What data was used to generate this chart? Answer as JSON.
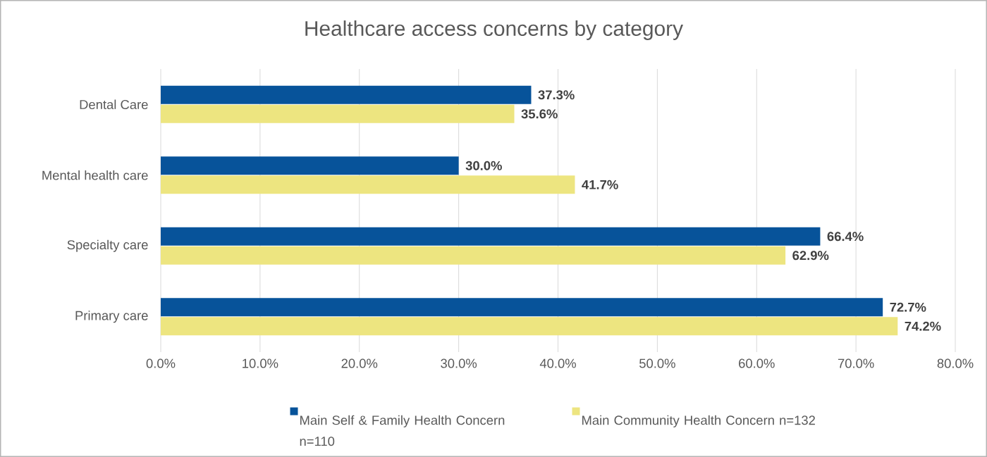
{
  "chart_data": {
    "type": "bar",
    "orientation": "horizontal",
    "title": "Healthcare access concerns by category",
    "categories": [
      "Dental Care",
      "Mental health care",
      "Specialty care",
      "Primary care"
    ],
    "series": [
      {
        "name": "Main Self & Family Health Concern n=110",
        "color": "#07539a",
        "values": [
          37.3,
          30.0,
          66.4,
          72.7
        ],
        "value_labels": [
          "37.3%",
          "30.0%",
          "66.4%",
          "72.7%"
        ]
      },
      {
        "name": "Main Community Health Concern n=132",
        "color": "#ede580",
        "values": [
          35.6,
          41.7,
          62.9,
          74.2
        ],
        "value_labels": [
          "35.6%",
          "41.7%",
          "62.9%",
          "74.2%"
        ]
      }
    ],
    "xlim": [
      0,
      80
    ],
    "xticks": [
      {
        "value": 0,
        "label": "0.0%"
      },
      {
        "value": 10,
        "label": "10.0%"
      },
      {
        "value": 20,
        "label": "20.0%"
      },
      {
        "value": 30,
        "label": "30.0%"
      },
      {
        "value": 40,
        "label": "40.0%"
      },
      {
        "value": 50,
        "label": "50.0%"
      },
      {
        "value": 60,
        "label": "60.0%"
      },
      {
        "value": 70,
        "label": "70.0%"
      },
      {
        "value": 80,
        "label": "80.0%"
      }
    ],
    "grid": "x",
    "legend": "bottom"
  }
}
